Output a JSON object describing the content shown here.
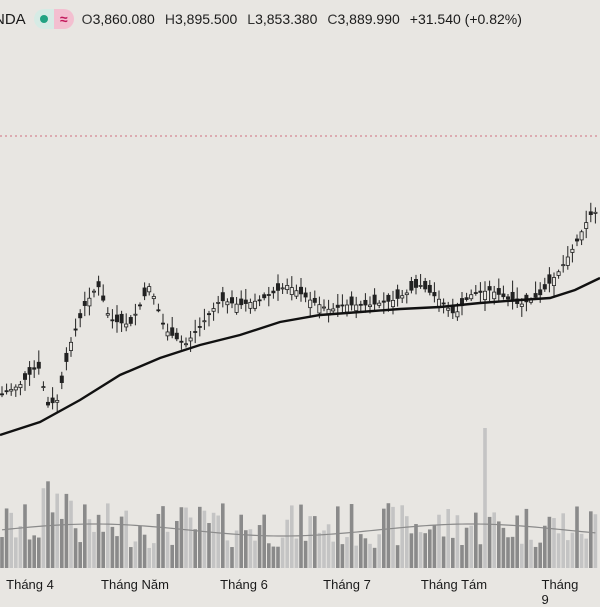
{
  "header": {
    "symbol": "NDA",
    "icons": {
      "status": "green-dot-icon",
      "indicator": "wave-icon"
    },
    "open_label": "O",
    "open_value": "3,860.080",
    "high_label": "H",
    "high_value": "3,895.500",
    "low_label": "L",
    "low_value": "3,853.380",
    "close_label": "C",
    "close_value": "3,889.990",
    "change": "+31.540 (+0.82%)"
  },
  "colors": {
    "background": "#e8e6e2",
    "candle": "#222222",
    "ma": "#111111",
    "volume_dark": "#8a8a8a",
    "volume_light": "#c4c4c4",
    "price_line": "#d07080"
  },
  "chart_data": {
    "type": "candlestick",
    "x_axis_labels": [
      "Tháng 4",
      "Tháng Năm",
      "Tháng 6",
      "Tháng 7",
      "Tháng Tám",
      "Tháng 9"
    ],
    "current_price_line": "dotted",
    "series": [
      {
        "name": "",
        "description": "daily candles with moving average and volume"
      }
    ]
  }
}
